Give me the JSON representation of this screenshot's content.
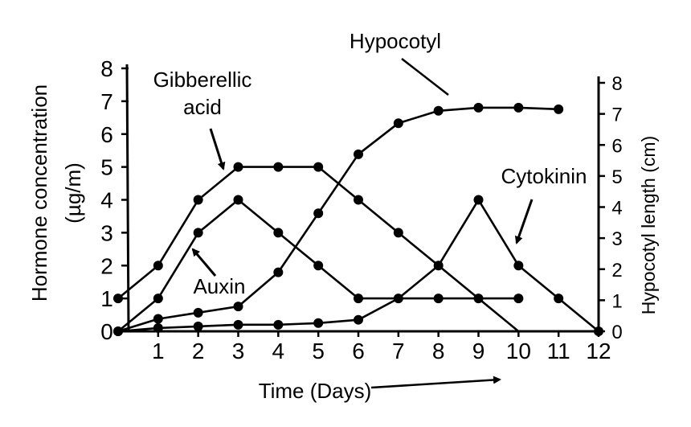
{
  "chart_data": {
    "type": "line",
    "x_ticks": [
      "1",
      "2",
      "3",
      "4",
      "5",
      "6",
      "7",
      "8",
      "9",
      "10",
      "11",
      "12"
    ],
    "xlim": [
      0,
      12
    ],
    "ylim_left": [
      0,
      8
    ],
    "ylim_right": [
      0,
      8
    ],
    "yticks_left": [
      "0",
      "1",
      "2",
      "3",
      "4",
      "5",
      "6",
      "7",
      "8"
    ],
    "yticks_right": [
      "0",
      "1",
      "2",
      "3",
      "4",
      "5",
      "6",
      "7",
      "8"
    ],
    "xlabel": "Time (Days)",
    "ylabel_left": "Hormone concentration",
    "ylabel_left_unit": "(µg/m)",
    "ylabel_right": "Hypocotyl length (cm)",
    "grid": false,
    "series": [
      {
        "name": "Gibberellic acid",
        "axis": "left",
        "x": [
          0,
          1,
          2,
          3,
          4,
          5,
          6,
          7,
          8,
          10
        ],
        "y": [
          1,
          2,
          4,
          5,
          5,
          5,
          4,
          3,
          2,
          0
        ],
        "markers": [
          true,
          true,
          true,
          true,
          true,
          true,
          true,
          true,
          false,
          false
        ]
      },
      {
        "name": "Auxin",
        "axis": "left",
        "x": [
          0,
          1,
          2,
          3,
          4,
          5,
          6,
          7,
          8,
          9,
          10
        ],
        "y": [
          0,
          1,
          3,
          4,
          3,
          2,
          1,
          1,
          1,
          1,
          1
        ],
        "markers": [
          true,
          true,
          true,
          true,
          true,
          true,
          true,
          true,
          true,
          true,
          true
        ]
      },
      {
        "name": "Hypocotyl",
        "axis": "right",
        "x": [
          0,
          1,
          2,
          3,
          4,
          5,
          6,
          7,
          8,
          9,
          10,
          11
        ],
        "y": [
          0,
          0.4,
          0.6,
          0.8,
          1.9,
          3.8,
          5.7,
          6.7,
          7.1,
          7.2,
          7.2,
          7.15
        ],
        "markers": [
          true,
          true,
          true,
          true,
          true,
          true,
          true,
          true,
          true,
          true,
          true,
          true
        ]
      },
      {
        "name": "Cytokinin",
        "axis": "left",
        "x": [
          0,
          1,
          2,
          3,
          4,
          5,
          6,
          7,
          8,
          9,
          10,
          11,
          12
        ],
        "y": [
          0,
          0.1,
          0.15,
          0.2,
          0.2,
          0.25,
          0.35,
          1,
          2,
          4,
          2,
          1,
          0
        ],
        "markers": [
          false,
          true,
          true,
          true,
          true,
          true,
          true,
          false,
          true,
          true,
          true,
          true,
          true
        ]
      }
    ],
    "annotations": [
      {
        "id": "gibberellic",
        "lines": [
          "Gibberellic",
          "acid"
        ]
      },
      {
        "id": "auxin",
        "lines": [
          "Auxin"
        ]
      },
      {
        "id": "hypocotyl",
        "lines": [
          "Hypocotyl"
        ]
      },
      {
        "id": "cytokinin",
        "lines": [
          "Cytokinin"
        ]
      }
    ]
  }
}
